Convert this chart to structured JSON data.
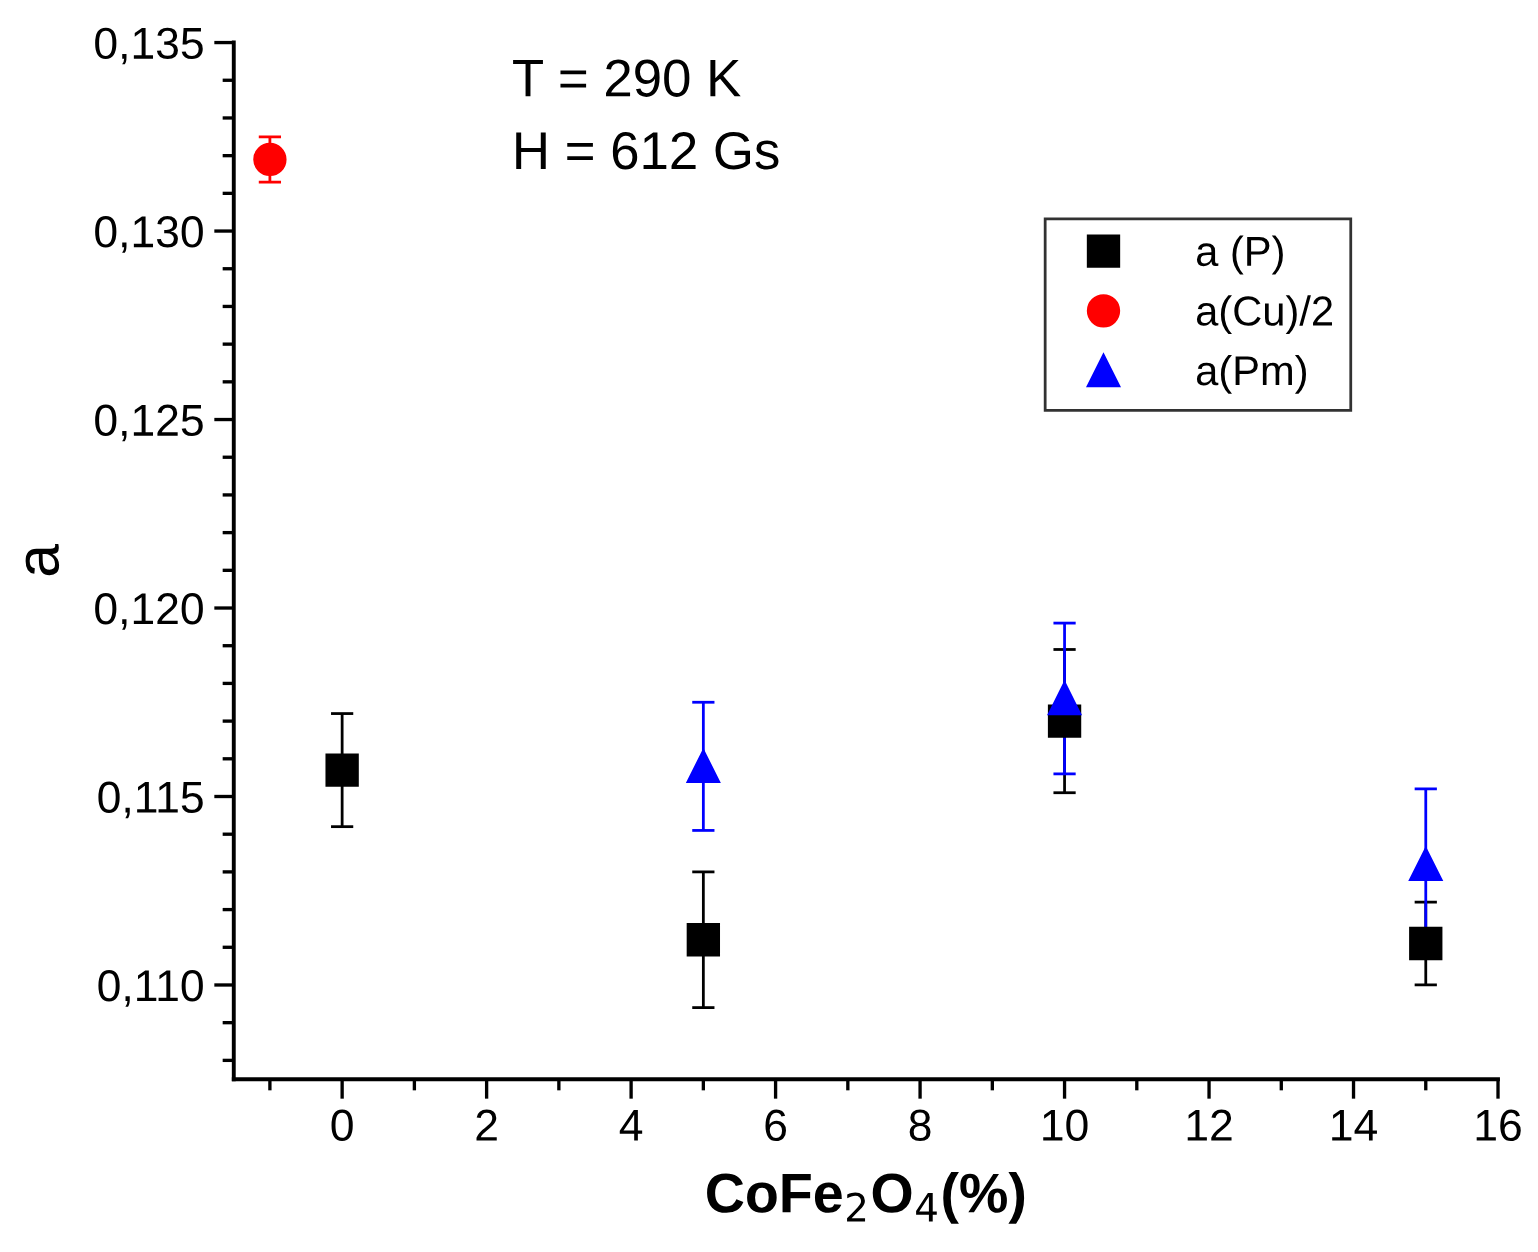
{
  "chart_data": {
    "type": "scatter",
    "xlabel": "CoFe$_{2}$O$_{4}$(%)",
    "ylabel": "a",
    "annotations": [
      "T = 290 K",
      "H = 612 Gs"
    ],
    "xlim": [
      -1.5,
      16
    ],
    "xticks": [
      0,
      2,
      4,
      6,
      8,
      10,
      12,
      14,
      16
    ],
    "ylim": [
      0.1075,
      0.135
    ],
    "yticks": [
      {
        "value": 0.11,
        "label": "0,110"
      },
      {
        "value": 0.115,
        "label": "0,115"
      },
      {
        "value": 0.12,
        "label": "0,120"
      },
      {
        "value": 0.125,
        "label": "0,125"
      },
      {
        "value": 0.13,
        "label": "0,130"
      },
      {
        "value": 0.135,
        "label": "0,135"
      }
    ],
    "grid": false,
    "legend": "top right",
    "series": [
      {
        "name": "a (P)",
        "color": "#000000",
        "marker": "square",
        "x": [
          0,
          5,
          10,
          15
        ],
        "values": [
          0.1157,
          0.1112,
          0.117,
          0.1111
        ],
        "errors": [
          0.0015,
          0.0018,
          0.0019,
          0.0011
        ]
      },
      {
        "name": "a(Cu)/2",
        "color": "#ff0000",
        "marker": "circle",
        "x": [
          -1
        ],
        "values": [
          0.1319
        ],
        "errors": [
          0.0006
        ]
      },
      {
        "name": "a(Pm)",
        "color": "#0000ff",
        "marker": "triangle",
        "x": [
          5,
          10,
          15
        ],
        "values": [
          0.1158,
          0.1176,
          0.1132
        ],
        "errors": [
          0.0017,
          0.002,
          0.002
        ]
      }
    ]
  }
}
